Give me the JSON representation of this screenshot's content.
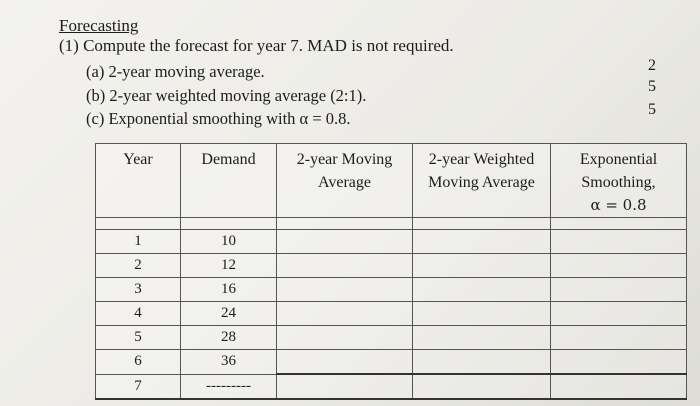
{
  "heading": "Forecasting",
  "question": "(1) Compute the forecast for year 7. MAD is not required.",
  "parts": [
    "(a) 2-year moving average.",
    "(b) 2-year weighted moving average (2:1).",
    "(c) Exponential smoothing with α = 0.8."
  ],
  "points": [
    "2",
    "5",
    "5"
  ],
  "table": {
    "headers": {
      "year": "Year",
      "demand": "Demand",
      "ma_line1": "2-year Moving",
      "ma_line2": "Average",
      "wma_line1": "2-year Weighted",
      "wma_line2": "Moving Average",
      "es_line1": "Exponential",
      "es_line2": "Smoothing,",
      "es_line3": "α = 0.8"
    },
    "rows": [
      {
        "year": "1",
        "demand": "10"
      },
      {
        "year": "2",
        "demand": "12"
      },
      {
        "year": "3",
        "demand": "16"
      },
      {
        "year": "4",
        "demand": "24"
      },
      {
        "year": "5",
        "demand": "28"
      },
      {
        "year": "6",
        "demand": "36"
      },
      {
        "year": "7",
        "demand": "---------"
      }
    ]
  }
}
